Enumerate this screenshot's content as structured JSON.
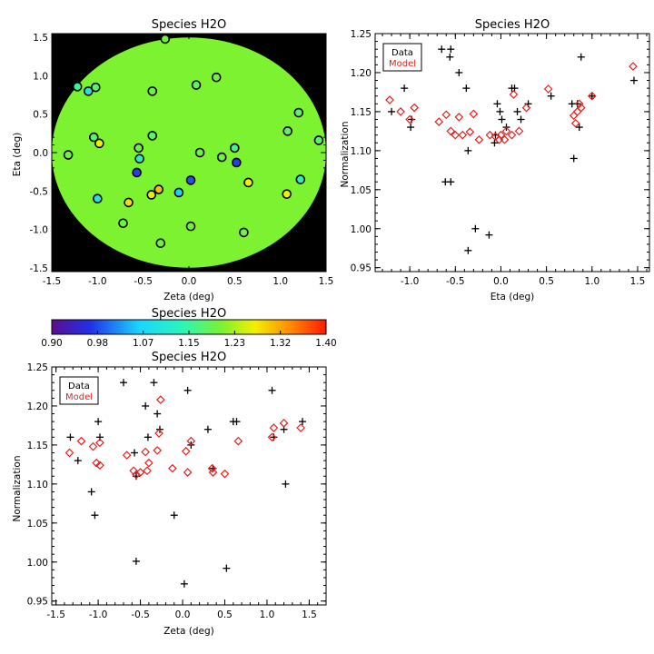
{
  "colors": {
    "data": "#000000",
    "model": "#e8201e",
    "background_mask": "#000000",
    "colorbar": [
      "#5b0e8c",
      "#2130e8",
      "#1ad6ff",
      "#2ef5b5",
      "#7cf230",
      "#f2f000",
      "#ff8a00",
      "#ff1a00"
    ]
  },
  "chart_data": [
    {
      "type": "scatter",
      "id": "map",
      "title": "Species H2O",
      "xlabel": "Zeta (deg)",
      "ylabel": "Eta (deg)",
      "xlim": [
        -1.5,
        1.5
      ],
      "ylim": [
        -1.55,
        1.55
      ],
      "xticks": [
        -1.5,
        -1.0,
        -0.5,
        0.0,
        0.5,
        1.0,
        1.5
      ],
      "xtick_labels": [
        "-1.5",
        "-1.0",
        "-0.5",
        "0.0",
        "0.5",
        "1.0",
        "1.5"
      ],
      "yticks": [
        -1.5,
        -1.0,
        -0.5,
        0.0,
        0.5,
        1.0,
        1.5
      ],
      "ytick_labels": [
        "-1.5",
        "-1.0",
        "-0.5",
        "0.0",
        "0.5",
        "1.0",
        "1.5"
      ],
      "background": "circular field, uniform green (~1.21) inside radius 1.5, black outside",
      "points": [
        {
          "x": -0.26,
          "y": 1.48,
          "value": 1.2
        },
        {
          "x": -1.22,
          "y": 0.86,
          "value": 1.15
        },
        {
          "x": -1.1,
          "y": 0.8,
          "value": 1.09
        },
        {
          "x": -1.02,
          "y": 0.85,
          "value": 1.18
        },
        {
          "x": -0.4,
          "y": 0.8,
          "value": 1.2
        },
        {
          "x": 0.08,
          "y": 0.88,
          "value": 1.18
        },
        {
          "x": 0.3,
          "y": 0.98,
          "value": 1.2
        },
        {
          "x": 1.2,
          "y": 0.52,
          "value": 1.18
        },
        {
          "x": 1.08,
          "y": 0.28,
          "value": 1.18
        },
        {
          "x": 1.42,
          "y": 0.16,
          "value": 1.18
        },
        {
          "x": -1.32,
          "y": -0.03,
          "value": 1.2
        },
        {
          "x": -1.04,
          "y": 0.2,
          "value": 1.18
        },
        {
          "x": -0.98,
          "y": 0.12,
          "value": 1.27
        },
        {
          "x": -0.4,
          "y": 0.22,
          "value": 1.18
        },
        {
          "x": -0.55,
          "y": 0.06,
          "value": 1.2
        },
        {
          "x": -0.54,
          "y": -0.08,
          "value": 1.12
        },
        {
          "x": -0.57,
          "y": -0.26,
          "value": 0.98
        },
        {
          "x": 0.12,
          "y": 0.0,
          "value": 1.2
        },
        {
          "x": 0.36,
          "y": -0.06,
          "value": 1.2
        },
        {
          "x": 0.5,
          "y": 0.06,
          "value": 1.16
        },
        {
          "x": 0.52,
          "y": -0.13,
          "value": 0.98
        },
        {
          "x": 0.02,
          "y": -0.36,
          "value": 0.99
        },
        {
          "x": -0.11,
          "y": -0.52,
          "value": 1.06
        },
        {
          "x": -0.33,
          "y": -0.48,
          "value": 1.3
        },
        {
          "x": -0.41,
          "y": -0.55,
          "value": 1.26
        },
        {
          "x": -1.0,
          "y": -0.6,
          "value": 1.09
        },
        {
          "x": -0.66,
          "y": -0.65,
          "value": 1.28
        },
        {
          "x": -0.72,
          "y": -0.92,
          "value": 1.2
        },
        {
          "x": 0.65,
          "y": -0.39,
          "value": 1.27
        },
        {
          "x": 1.07,
          "y": -0.54,
          "value": 1.27
        },
        {
          "x": 1.22,
          "y": -0.35,
          "value": 1.12
        },
        {
          "x": 0.02,
          "y": -0.96,
          "value": 1.2
        },
        {
          "x": 0.6,
          "y": -1.04,
          "value": 1.2
        },
        {
          "x": -0.31,
          "y": -1.18,
          "value": 1.2
        }
      ]
    },
    {
      "type": "scatter",
      "id": "eta",
      "title": "Species H2O",
      "xlabel": "Eta (deg)",
      "ylabel": "Normalization",
      "xlim": [
        -1.38,
        1.63
      ],
      "ylim": [
        0.945,
        1.25
      ],
      "xticks": [
        -1.0,
        -0.5,
        0.0,
        0.5,
        1.0,
        1.5
      ],
      "xtick_labels": [
        "-1.0",
        "-0.5",
        "0.0",
        "0.5",
        "1.0",
        "1.5"
      ],
      "yticks": [
        0.95,
        1.0,
        1.05,
        1.1,
        1.15,
        1.2,
        1.25
      ],
      "ytick_labels": [
        "0.95",
        "1.00",
        "1.05",
        "1.10",
        "1.15",
        "1.20",
        "1.25"
      ],
      "legend": {
        "position": "top-left",
        "entries": [
          "Data",
          "Model"
        ]
      },
      "series": [
        {
          "name": "Data",
          "marker": "plus",
          "x": [
            -1.2,
            -1.06,
            -0.98,
            -0.99,
            -0.65,
            -0.61,
            -0.55,
            -0.56,
            -0.55,
            -0.46,
            -0.38,
            -0.36,
            -0.36,
            -0.28,
            -0.13,
            -0.07,
            -0.06,
            -0.04,
            -0.01,
            0.01,
            0.06,
            0.12,
            0.15,
            0.18,
            0.22,
            0.3,
            0.55,
            0.78,
            0.8,
            0.84,
            0.86,
            0.88,
            1.0,
            1.46
          ],
          "y": [
            1.15,
            1.18,
            1.14,
            1.13,
            1.23,
            1.06,
            1.06,
            1.22,
            1.23,
            1.2,
            1.18,
            1.1,
            0.972,
            1.0,
            0.992,
            1.11,
            1.12,
            1.16,
            1.15,
            1.14,
            1.13,
            1.18,
            1.18,
            1.15,
            1.14,
            1.16,
            1.17,
            1.16,
            1.09,
            1.16,
            1.13,
            1.22,
            1.17,
            1.19
          ]
        },
        {
          "name": "Model",
          "marker": "diamond",
          "x": [
            -1.22,
            -1.1,
            -1.0,
            -0.95,
            -0.68,
            -0.6,
            -0.55,
            -0.5,
            -0.46,
            -0.42,
            -0.34,
            -0.3,
            -0.24,
            -0.12,
            -0.06,
            -0.02,
            0.0,
            0.04,
            0.06,
            0.12,
            0.14,
            0.2,
            0.28,
            0.52,
            0.8,
            0.82,
            0.84,
            0.86,
            0.88,
            1.0,
            1.45
          ],
          "y": [
            1.165,
            1.15,
            1.14,
            1.155,
            1.137,
            1.146,
            1.125,
            1.12,
            1.143,
            1.12,
            1.124,
            1.147,
            1.114,
            1.12,
            1.118,
            1.114,
            1.12,
            1.114,
            1.125,
            1.12,
            1.172,
            1.125,
            1.155,
            1.179,
            1.145,
            1.135,
            1.15,
            1.16,
            1.155,
            1.17,
            1.208
          ]
        }
      ]
    },
    {
      "type": "scatter",
      "id": "zeta",
      "title": "Species H2O",
      "xlabel": "Zeta (deg)",
      "ylabel": "Normalization",
      "xlim": [
        -1.55,
        1.7
      ],
      "ylim": [
        0.945,
        1.25
      ],
      "xticks": [
        -1.5,
        -1.0,
        -0.5,
        0.0,
        0.5,
        1.0,
        1.5
      ],
      "xtick_labels": [
        "-1.5",
        "-1.0",
        "-0.5",
        "0.0",
        "0.5",
        "1.0",
        "1.5"
      ],
      "yticks": [
        0.95,
        1.0,
        1.05,
        1.1,
        1.15,
        1.2,
        1.25
      ],
      "ytick_labels": [
        "0.95",
        "1.00",
        "1.05",
        "1.10",
        "1.15",
        "1.20",
        "1.25"
      ],
      "legend": {
        "position": "top-left",
        "entries": [
          "Data",
          "Model"
        ]
      },
      "series": [
        {
          "name": "Data",
          "marker": "plus",
          "x": [
            -1.33,
            -1.24,
            -1.08,
            -1.04,
            -1.0,
            -0.98,
            -0.7,
            -0.57,
            -0.55,
            -0.55,
            -0.44,
            -0.41,
            -0.34,
            -0.3,
            -0.27,
            -0.1,
            0.02,
            0.06,
            0.1,
            0.3,
            0.36,
            0.52,
            0.6,
            0.64,
            1.06,
            1.08,
            1.2,
            1.22,
            1.42
          ],
          "y": [
            1.16,
            1.13,
            1.09,
            1.06,
            1.18,
            1.16,
            1.23,
            1.14,
            1.001,
            1.11,
            1.2,
            1.16,
            1.23,
            1.19,
            1.17,
            1.06,
            0.972,
            1.22,
            1.15,
            1.17,
            1.12,
            0.992,
            1.18,
            1.18,
            1.22,
            1.16,
            1.17,
            1.1,
            1.18
          ]
        },
        {
          "name": "Model",
          "marker": "diamond",
          "x": [
            -1.34,
            -1.2,
            -1.06,
            -1.02,
            -0.98,
            -0.98,
            -0.66,
            -0.58,
            -0.55,
            -0.5,
            -0.44,
            -0.42,
            -0.4,
            -0.3,
            -0.28,
            -0.26,
            -0.12,
            0.04,
            0.06,
            0.1,
            0.35,
            0.36,
            0.5,
            0.66,
            1.06,
            1.08,
            1.2,
            1.4
          ],
          "y": [
            1.14,
            1.155,
            1.148,
            1.127,
            1.153,
            1.124,
            1.137,
            1.117,
            1.112,
            1.115,
            1.141,
            1.117,
            1.127,
            1.143,
            1.165,
            1.208,
            1.12,
            1.142,
            1.115,
            1.155,
            1.12,
            1.115,
            1.113,
            1.155,
            1.16,
            1.172,
            1.178,
            1.172
          ]
        }
      ]
    },
    {
      "type": "heatmap",
      "id": "colorbar",
      "title": "Species H2O",
      "range": [
        0.9,
        1.4
      ],
      "ticks": [
        "0.90",
        "0.98",
        "1.07",
        "1.15",
        "1.23",
        "1.32",
        "1.40"
      ]
    }
  ],
  "legend_labels": [
    "Data",
    "Model"
  ]
}
